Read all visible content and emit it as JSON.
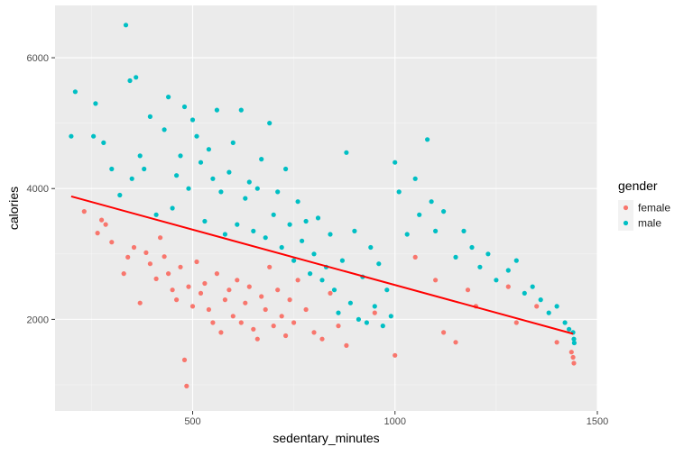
{
  "chart_data": {
    "type": "scatter",
    "xlabel": "sedentary_minutes",
    "ylabel": "calories",
    "xlim": [
      160,
      1500
    ],
    "ylim": [
      600,
      6800
    ],
    "x_ticks": [
      500,
      1000,
      1500
    ],
    "y_ticks": [
      2000,
      4000,
      6000
    ],
    "x_tick_labels": [
      "500",
      "1000",
      "1500"
    ],
    "y_tick_labels": [
      "2000",
      "4000",
      "6000"
    ],
    "grid": true,
    "legend": {
      "title": "gender",
      "placement": "right"
    },
    "series": [
      {
        "name": "female",
        "color": "#F8766D",
        "points": [
          [
            232,
            3650
          ],
          [
            265,
            3320
          ],
          [
            275,
            3520
          ],
          [
            285,
            3450
          ],
          [
            300,
            3180
          ],
          [
            330,
            2700
          ],
          [
            340,
            2950
          ],
          [
            355,
            3100
          ],
          [
            370,
            2250
          ],
          [
            385,
            3020
          ],
          [
            395,
            2850
          ],
          [
            410,
            2620
          ],
          [
            420,
            3250
          ],
          [
            430,
            2960
          ],
          [
            440,
            2700
          ],
          [
            450,
            2450
          ],
          [
            460,
            2300
          ],
          [
            470,
            2800
          ],
          [
            480,
            1380
          ],
          [
            485,
            980
          ],
          [
            490,
            2500
          ],
          [
            500,
            2200
          ],
          [
            510,
            2880
          ],
          [
            520,
            2400
          ],
          [
            530,
            2550
          ],
          [
            540,
            2150
          ],
          [
            550,
            1950
          ],
          [
            560,
            2700
          ],
          [
            570,
            1800
          ],
          [
            580,
            2300
          ],
          [
            590,
            2450
          ],
          [
            600,
            2050
          ],
          [
            610,
            2600
          ],
          [
            620,
            1950
          ],
          [
            630,
            2250
          ],
          [
            640,
            2500
          ],
          [
            650,
            1850
          ],
          [
            660,
            1700
          ],
          [
            670,
            2350
          ],
          [
            680,
            2150
          ],
          [
            690,
            2800
          ],
          [
            700,
            1900
          ],
          [
            710,
            2450
          ],
          [
            720,
            2050
          ],
          [
            730,
            1750
          ],
          [
            740,
            2300
          ],
          [
            750,
            1950
          ],
          [
            760,
            2600
          ],
          [
            780,
            2150
          ],
          [
            800,
            1800
          ],
          [
            820,
            1700
          ],
          [
            840,
            2400
          ],
          [
            860,
            1900
          ],
          [
            880,
            1600
          ],
          [
            950,
            2100
          ],
          [
            1000,
            1450
          ],
          [
            1050,
            2950
          ],
          [
            1100,
            2600
          ],
          [
            1120,
            1800
          ],
          [
            1150,
            1650
          ],
          [
            1180,
            2450
          ],
          [
            1200,
            2200
          ],
          [
            1280,
            2500
          ],
          [
            1300,
            1950
          ],
          [
            1350,
            2200
          ],
          [
            1400,
            1650
          ],
          [
            1436,
            1500
          ],
          [
            1440,
            1420
          ],
          [
            1442,
            1330
          ]
        ]
      },
      {
        "name": "male",
        "color": "#00BFC4",
        "points": [
          [
            200,
            4800
          ],
          [
            210,
            5480
          ],
          [
            255,
            4800
          ],
          [
            260,
            5300
          ],
          [
            280,
            4700
          ],
          [
            300,
            4300
          ],
          [
            320,
            3900
          ],
          [
            335,
            6500
          ],
          [
            345,
            5650
          ],
          [
            350,
            4150
          ],
          [
            360,
            5700
          ],
          [
            370,
            4500
          ],
          [
            380,
            4300
          ],
          [
            395,
            5100
          ],
          [
            410,
            3600
          ],
          [
            430,
            4900
          ],
          [
            440,
            5400
          ],
          [
            450,
            3700
          ],
          [
            460,
            4200
          ],
          [
            470,
            4500
          ],
          [
            480,
            5250
          ],
          [
            490,
            4000
          ],
          [
            500,
            5050
          ],
          [
            510,
            4800
          ],
          [
            520,
            4400
          ],
          [
            530,
            3500
          ],
          [
            540,
            4600
          ],
          [
            550,
            4150
          ],
          [
            560,
            5200
          ],
          [
            570,
            3950
          ],
          [
            580,
            3300
          ],
          [
            590,
            4250
          ],
          [
            600,
            4700
          ],
          [
            610,
            3450
          ],
          [
            620,
            5200
          ],
          [
            630,
            3850
          ],
          [
            640,
            4100
          ],
          [
            650,
            3350
          ],
          [
            660,
            4000
          ],
          [
            670,
            4450
          ],
          [
            680,
            3250
          ],
          [
            690,
            5000
          ],
          [
            700,
            3600
          ],
          [
            710,
            3950
          ],
          [
            720,
            3100
          ],
          [
            730,
            4300
          ],
          [
            740,
            3450
          ],
          [
            750,
            2900
          ],
          [
            760,
            3800
          ],
          [
            770,
            3200
          ],
          [
            780,
            3500
          ],
          [
            790,
            2700
          ],
          [
            800,
            3000
          ],
          [
            810,
            3550
          ],
          [
            820,
            2600
          ],
          [
            830,
            2800
          ],
          [
            840,
            3300
          ],
          [
            850,
            2450
          ],
          [
            860,
            2100
          ],
          [
            870,
            2900
          ],
          [
            880,
            4550
          ],
          [
            890,
            2250
          ],
          [
            900,
            3350
          ],
          [
            910,
            2000
          ],
          [
            920,
            2650
          ],
          [
            930,
            1950
          ],
          [
            940,
            3100
          ],
          [
            950,
            2200
          ],
          [
            960,
            2850
          ],
          [
            970,
            1900
          ],
          [
            980,
            2450
          ],
          [
            990,
            2050
          ],
          [
            1000,
            4400
          ],
          [
            1010,
            3950
          ],
          [
            1030,
            3300
          ],
          [
            1050,
            4150
          ],
          [
            1060,
            3600
          ],
          [
            1080,
            4750
          ],
          [
            1090,
            3800
          ],
          [
            1100,
            3350
          ],
          [
            1120,
            3650
          ],
          [
            1150,
            2950
          ],
          [
            1170,
            3350
          ],
          [
            1190,
            3100
          ],
          [
            1210,
            2800
          ],
          [
            1230,
            3000
          ],
          [
            1250,
            2600
          ],
          [
            1280,
            2750
          ],
          [
            1300,
            2900
          ],
          [
            1320,
            2400
          ],
          [
            1340,
            2500
          ],
          [
            1360,
            2300
          ],
          [
            1380,
            2100
          ],
          [
            1400,
            2200
          ],
          [
            1420,
            1950
          ],
          [
            1430,
            1850
          ],
          [
            1440,
            1800
          ],
          [
            1442,
            1700
          ],
          [
            1443,
            1640
          ]
        ]
      }
    ],
    "trend_line": {
      "color": "#FF0000",
      "points": [
        [
          200,
          3880
        ],
        [
          1440,
          1780
        ]
      ]
    }
  }
}
